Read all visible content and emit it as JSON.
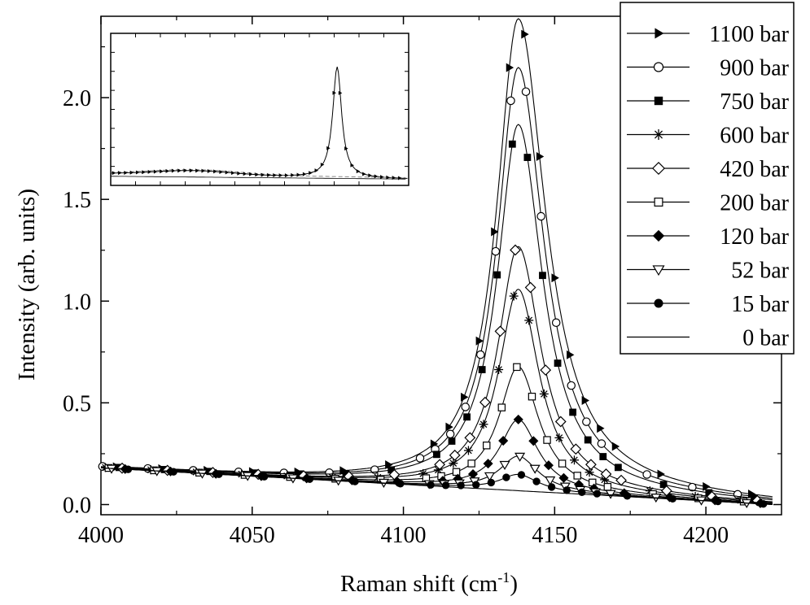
{
  "chart_data": {
    "type": "line",
    "title": "",
    "xlabel": "Raman shift (cm",
    "xlabel_sup": "-1",
    "xlabel_close": ")",
    "ylabel": "Intensity (arb. units)",
    "xlim": [
      4000,
      4225
    ],
    "ylim": [
      -0.05,
      2.4
    ],
    "xticks": [
      4000,
      4050,
      4100,
      4150,
      4200
    ],
    "xtick_labels": [
      "4000",
      "4050",
      "4100",
      "4150",
      "4200"
    ],
    "yticks": [
      0.0,
      0.5,
      1.0,
      1.5,
      2.0
    ],
    "ytick_labels": [
      "0.0",
      "0.5",
      "1.0",
      "1.5",
      "2.0"
    ],
    "legend_position": "top-right",
    "peak_center": 4138,
    "series": [
      {
        "name": "1100 bar",
        "marker": "triangle-right",
        "peak": 2.32,
        "width": 10.0,
        "right_offset": 2.0
      },
      {
        "name": "900 bar",
        "marker": "circle-open",
        "peak": 2.08,
        "width": 9.7,
        "right_offset": 1.5
      },
      {
        "name": "750 bar",
        "marker": "square-filled",
        "peak": 1.8,
        "width": 9.5,
        "right_offset": 1.0
      },
      {
        "name": "600 bar",
        "marker": "star",
        "peak": 0.99,
        "width": 9.0,
        "right_offset": 0.0
      },
      {
        "name": "420 bar",
        "marker": "diamond-open",
        "peak": 1.2,
        "width": 9.3,
        "right_offset": 0.5
      },
      {
        "name": "200 bar",
        "marker": "square-open",
        "peak": 0.61,
        "width": 8.8,
        "right_offset": 0.0
      },
      {
        "name": "120 bar",
        "marker": "diamond-filled",
        "peak": 0.35,
        "width": 8.5,
        "right_offset": 0.0
      },
      {
        "name": "52 bar",
        "marker": "triangle-down-open",
        "peak": 0.17,
        "width": 8.5,
        "right_offset": 0.0
      },
      {
        "name": "15 bar",
        "marker": "circle-filled",
        "peak": 0.08,
        "width": 8.5,
        "right_offset": 0.0
      },
      {
        "name": "0 bar",
        "marker": "none",
        "peak": 0.0,
        "width": 8.5,
        "right_offset": 0.0
      }
    ],
    "baseline": {
      "start": 0.18,
      "end": 0.0,
      "x_start": 4000,
      "x_end": 4222
    },
    "inset": {
      "description_free": true,
      "peak_position": 0.76,
      "broad_hump_position": 0.28
    }
  }
}
